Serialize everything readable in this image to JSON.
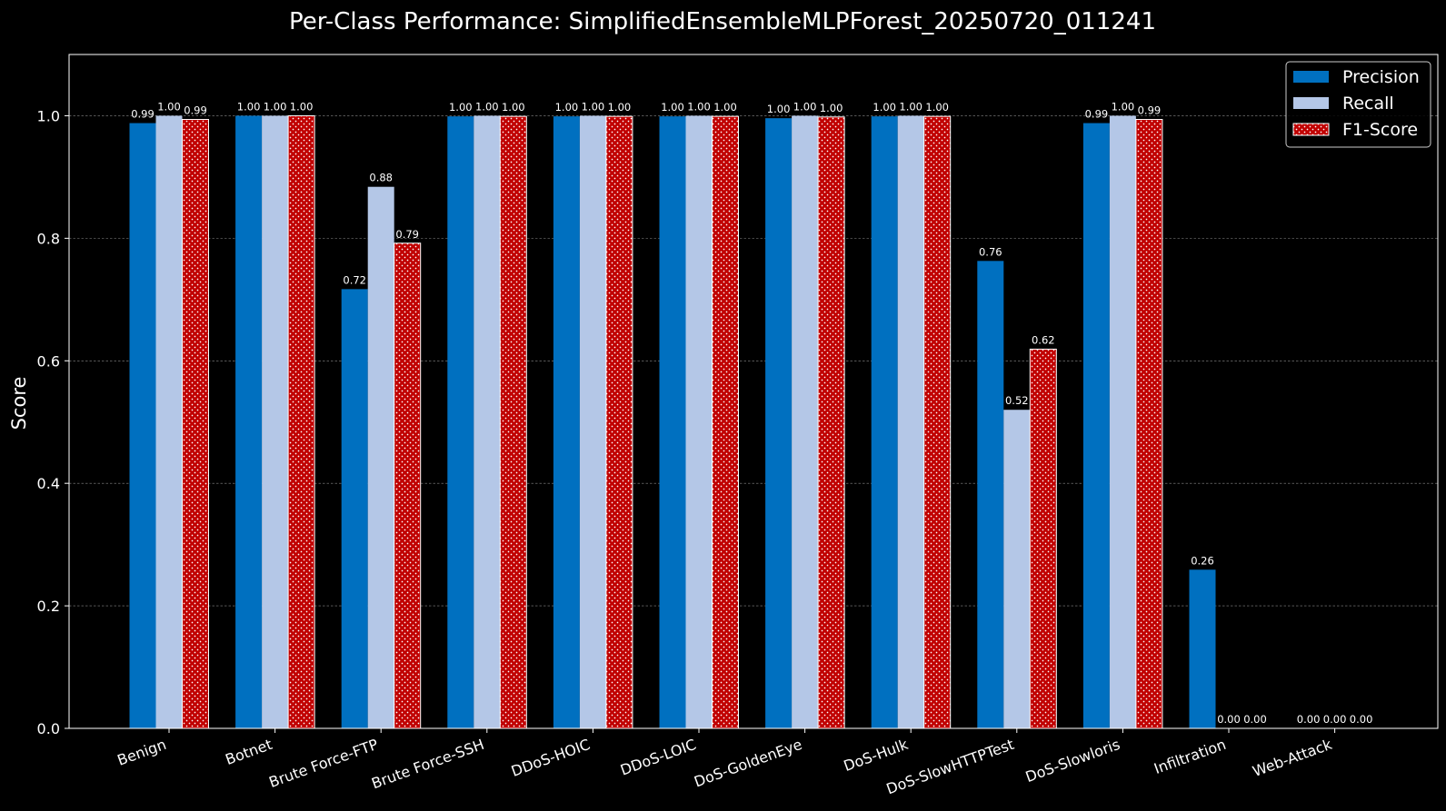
{
  "chart_data": {
    "type": "bar",
    "title": "Per-Class Performance: SimplifiedEnsembleMLPForest_20250720_011241",
    "xlabel": "",
    "ylabel": "Score",
    "ylim": [
      0,
      1.1
    ],
    "yticks": [
      0.0,
      0.2,
      0.4,
      0.6,
      0.8,
      1.0
    ],
    "ytick_labels": [
      "0.0",
      "0.2",
      "0.4",
      "0.6",
      "0.8",
      "1.0"
    ],
    "grid": "horizontal dashed",
    "legend_position": "top-right",
    "categories": [
      "Benign",
      "Botnet",
      "Brute Force-FTP",
      "Brute Force-SSH",
      "DDoS-HOIC",
      "DDoS-LOIC",
      "DoS-GoldenEye",
      "DoS-Hulk",
      "DoS-SlowHTTPTest",
      "DoS-Slowloris",
      "Infiltration",
      "Web-Attack"
    ],
    "series": [
      {
        "name": "Precision",
        "color": "#0070c0",
        "pattern": "solid",
        "values": [
          0.988,
          1.0,
          0.717,
          0.999,
          0.999,
          0.999,
          0.996,
          0.999,
          0.763,
          0.988,
          0.259,
          0.0
        ],
        "labels": [
          "0.99",
          "1.00",
          "0.72",
          "1.00",
          "1.00",
          "1.00",
          "1.00",
          "1.00",
          "0.76",
          "0.99",
          "0.26",
          "0.00"
        ]
      },
      {
        "name": "Recall",
        "color": "#b4c7e7",
        "pattern": "solid",
        "values": [
          1.0,
          1.0,
          0.884,
          1.0,
          1.0,
          1.0,
          1.0,
          1.0,
          0.52,
          1.0,
          0.0,
          0.0
        ],
        "labels": [
          "1.00",
          "1.00",
          "0.88",
          "1.00",
          "1.00",
          "1.00",
          "1.00",
          "1.00",
          "0.52",
          "1.00",
          "0.00",
          "0.00"
        ]
      },
      {
        "name": "F1-Score",
        "color": "#c00000",
        "pattern": "dots",
        "values": [
          0.994,
          1.0,
          0.792,
          0.999,
          0.999,
          0.999,
          0.998,
          0.999,
          0.619,
          0.994,
          0.0,
          0.0
        ],
        "labels": [
          "0.99",
          "1.00",
          "0.79",
          "1.00",
          "1.00",
          "1.00",
          "1.00",
          "1.00",
          "0.62",
          "0.99",
          "0.00",
          "0.00"
        ]
      }
    ],
    "visible_bars": [
      [
        true,
        true,
        true,
        true,
        true,
        true,
        true,
        true,
        true,
        true,
        true,
        false
      ],
      [
        true,
        true,
        true,
        true,
        true,
        true,
        true,
        true,
        true,
        true,
        false,
        false
      ],
      [
        true,
        true,
        true,
        true,
        true,
        true,
        true,
        true,
        true,
        true,
        false,
        false
      ]
    ],
    "visible_labels": [
      [
        true,
        true,
        true,
        true,
        true,
        true,
        true,
        true,
        true,
        true,
        true,
        true
      ],
      [
        true,
        true,
        true,
        true,
        true,
        true,
        true,
        true,
        true,
        true,
        true,
        true
      ],
      [
        true,
        true,
        true,
        true,
        true,
        true,
        true,
        true,
        true,
        true,
        true,
        true
      ]
    ]
  }
}
